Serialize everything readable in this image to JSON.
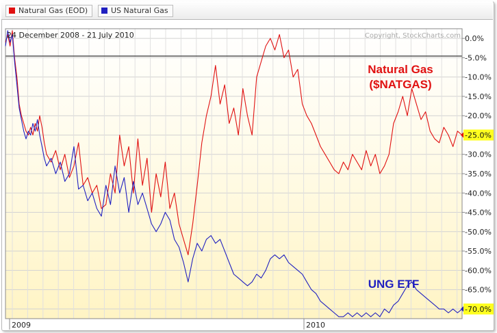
{
  "legend": [
    {
      "label": "Natural Gas (EOD)",
      "color": "#e01010"
    },
    {
      "label": "US Natural Gas",
      "color": "#2020c0"
    }
  ],
  "header": {
    "date_range": "24 December 2008 - 21 July 2010",
    "copyright": "Copyright, StockCharts.com"
  },
  "annotations": {
    "natgas_line1": "Natural Gas",
    "natgas_line2": "($NATGAS)",
    "ung": "UNG ETF"
  },
  "chart_data": {
    "type": "line",
    "x_axis_labels": [
      "2009",
      "2010"
    ],
    "y_ticks": [
      0,
      -5,
      -10,
      -15,
      -20,
      -25,
      -30,
      -35,
      -40,
      -45,
      -50,
      -55,
      -60,
      -65,
      -70
    ],
    "y_tick_labels": [
      "0.0%",
      "-5.0%",
      "-10.0%",
      "-15.0%",
      "-20.0%",
      "-25.0%",
      "-30.0%",
      "-35.0%",
      "-40.0%",
      "-45.0%",
      "-50.0%",
      "-55.0%",
      "-60.0%",
      "-65.0%",
      "-70.0%"
    ],
    "ylim": [
      -72.5,
      2.5
    ],
    "xlim": [
      0,
      100
    ],
    "grid": true,
    "highlighted_labels": [
      "-25.0%",
      "-70.0%"
    ],
    "series": [
      {
        "name": "Natural Gas (EOD)",
        "color": "#e01010",
        "x": [
          0,
          0.5,
          1,
          1.5,
          2,
          2.5,
          3,
          3.5,
          4,
          4.5,
          5,
          5.5,
          6,
          6.5,
          7,
          7.5,
          8,
          8.5,
          9,
          10,
          11,
          12,
          13,
          14,
          15,
          16,
          17,
          18,
          19,
          20,
          21,
          22,
          23,
          24,
          25,
          26,
          27,
          28,
          29,
          30,
          31,
          32,
          33,
          34,
          35,
          36,
          37,
          38,
          39,
          40,
          41,
          42,
          43,
          44,
          45,
          46,
          47,
          48,
          49,
          50,
          51,
          52,
          53,
          54,
          55,
          56,
          57,
          58,
          59,
          60,
          61,
          62,
          63,
          64,
          65,
          66,
          67,
          68,
          69,
          70,
          71,
          72,
          73,
          74,
          75,
          76,
          77,
          78,
          79,
          80,
          81,
          82,
          83,
          84,
          85,
          86,
          87,
          88,
          89,
          90,
          91,
          92,
          93,
          94,
          95,
          96,
          97,
          98,
          99,
          100
        ],
        "values": [
          -1,
          1,
          -2,
          2,
          -5,
          -10,
          -17,
          -20,
          -22,
          -24,
          -25,
          -23,
          -25,
          -22,
          -24,
          -20,
          -23,
          -27,
          -30,
          -32,
          -29,
          -34,
          -30,
          -36,
          -33,
          -27,
          -38,
          -36,
          -40,
          -38,
          -44,
          -43,
          -35,
          -40,
          -25,
          -33,
          -28,
          -40,
          -26,
          -38,
          -31,
          -45,
          -35,
          -41,
          -32,
          -44,
          -40,
          -48,
          -52,
          -56,
          -48,
          -38,
          -27,
          -20,
          -15,
          -7,
          -17,
          -12,
          -22,
          -18,
          -25,
          -13,
          -20,
          -25,
          -10,
          -6,
          -2,
          0,
          -3,
          1,
          -5,
          -3,
          -10,
          -8,
          -17,
          -20,
          -22,
          -25,
          -28,
          -30,
          -32,
          -34,
          -35,
          -32,
          -34,
          -30,
          -32,
          -34,
          -29,
          -33,
          -30,
          -35,
          -33,
          -30,
          -22,
          -19,
          -15,
          -20,
          -13,
          -17,
          -21,
          -19,
          -24,
          -26,
          -27,
          -23,
          -25,
          -28,
          -24,
          -25
        ],
        "end_label": "-25.0%"
      },
      {
        "name": "US Natural Gas",
        "color": "#2020c0",
        "x": [
          0,
          0.5,
          1,
          1.5,
          2,
          2.5,
          3,
          3.5,
          4,
          4.5,
          5,
          5.5,
          6,
          6.5,
          7,
          7.5,
          8,
          8.5,
          9,
          10,
          11,
          12,
          13,
          14,
          15,
          16,
          17,
          18,
          19,
          20,
          21,
          22,
          23,
          24,
          25,
          26,
          27,
          28,
          29,
          30,
          31,
          32,
          33,
          34,
          35,
          36,
          37,
          38,
          39,
          40,
          41,
          42,
          43,
          44,
          45,
          46,
          47,
          48,
          49,
          50,
          51,
          52,
          53,
          54,
          55,
          56,
          57,
          58,
          59,
          60,
          61,
          62,
          63,
          64,
          65,
          66,
          67,
          68,
          69,
          70,
          71,
          72,
          73,
          74,
          75,
          76,
          77,
          78,
          79,
          80,
          81,
          82,
          83,
          84,
          85,
          86,
          87,
          88,
          89,
          90,
          91,
          92,
          93,
          94,
          95,
          96,
          97,
          98,
          99,
          100
        ],
        "values": [
          -2,
          2,
          -1,
          1,
          -6,
          -12,
          -18,
          -21,
          -24,
          -26,
          -24,
          -25,
          -22,
          -24,
          -21,
          -25,
          -28,
          -31,
          -33,
          -31,
          -35,
          -32,
          -37,
          -35,
          -28,
          -39,
          -38,
          -42,
          -40,
          -44,
          -46,
          -38,
          -43,
          -33,
          -40,
          -36,
          -45,
          -37,
          -43,
          -40,
          -44,
          -48,
          -50,
          -48,
          -45,
          -47,
          -52,
          -54,
          -58,
          -63,
          -57,
          -53,
          -55,
          -52,
          -51,
          -53,
          -52,
          -55,
          -58,
          -61,
          -62,
          -63,
          -64,
          -63,
          -61,
          -62,
          -60,
          -57,
          -56,
          -57,
          -56,
          -58,
          -59,
          -60,
          -61,
          -63,
          -65,
          -66,
          -68,
          -69,
          -70,
          -71,
          -72,
          -72,
          -71,
          -72,
          -71,
          -72,
          -71,
          -72,
          -71,
          -72,
          -70,
          -71,
          -69,
          -68,
          -66,
          -64,
          -63,
          -65,
          -66,
          -67,
          -68,
          -69,
          -70,
          -70,
          -71,
          -70,
          -71,
          -70
        ],
        "end_label": "-70.0%"
      }
    ]
  }
}
